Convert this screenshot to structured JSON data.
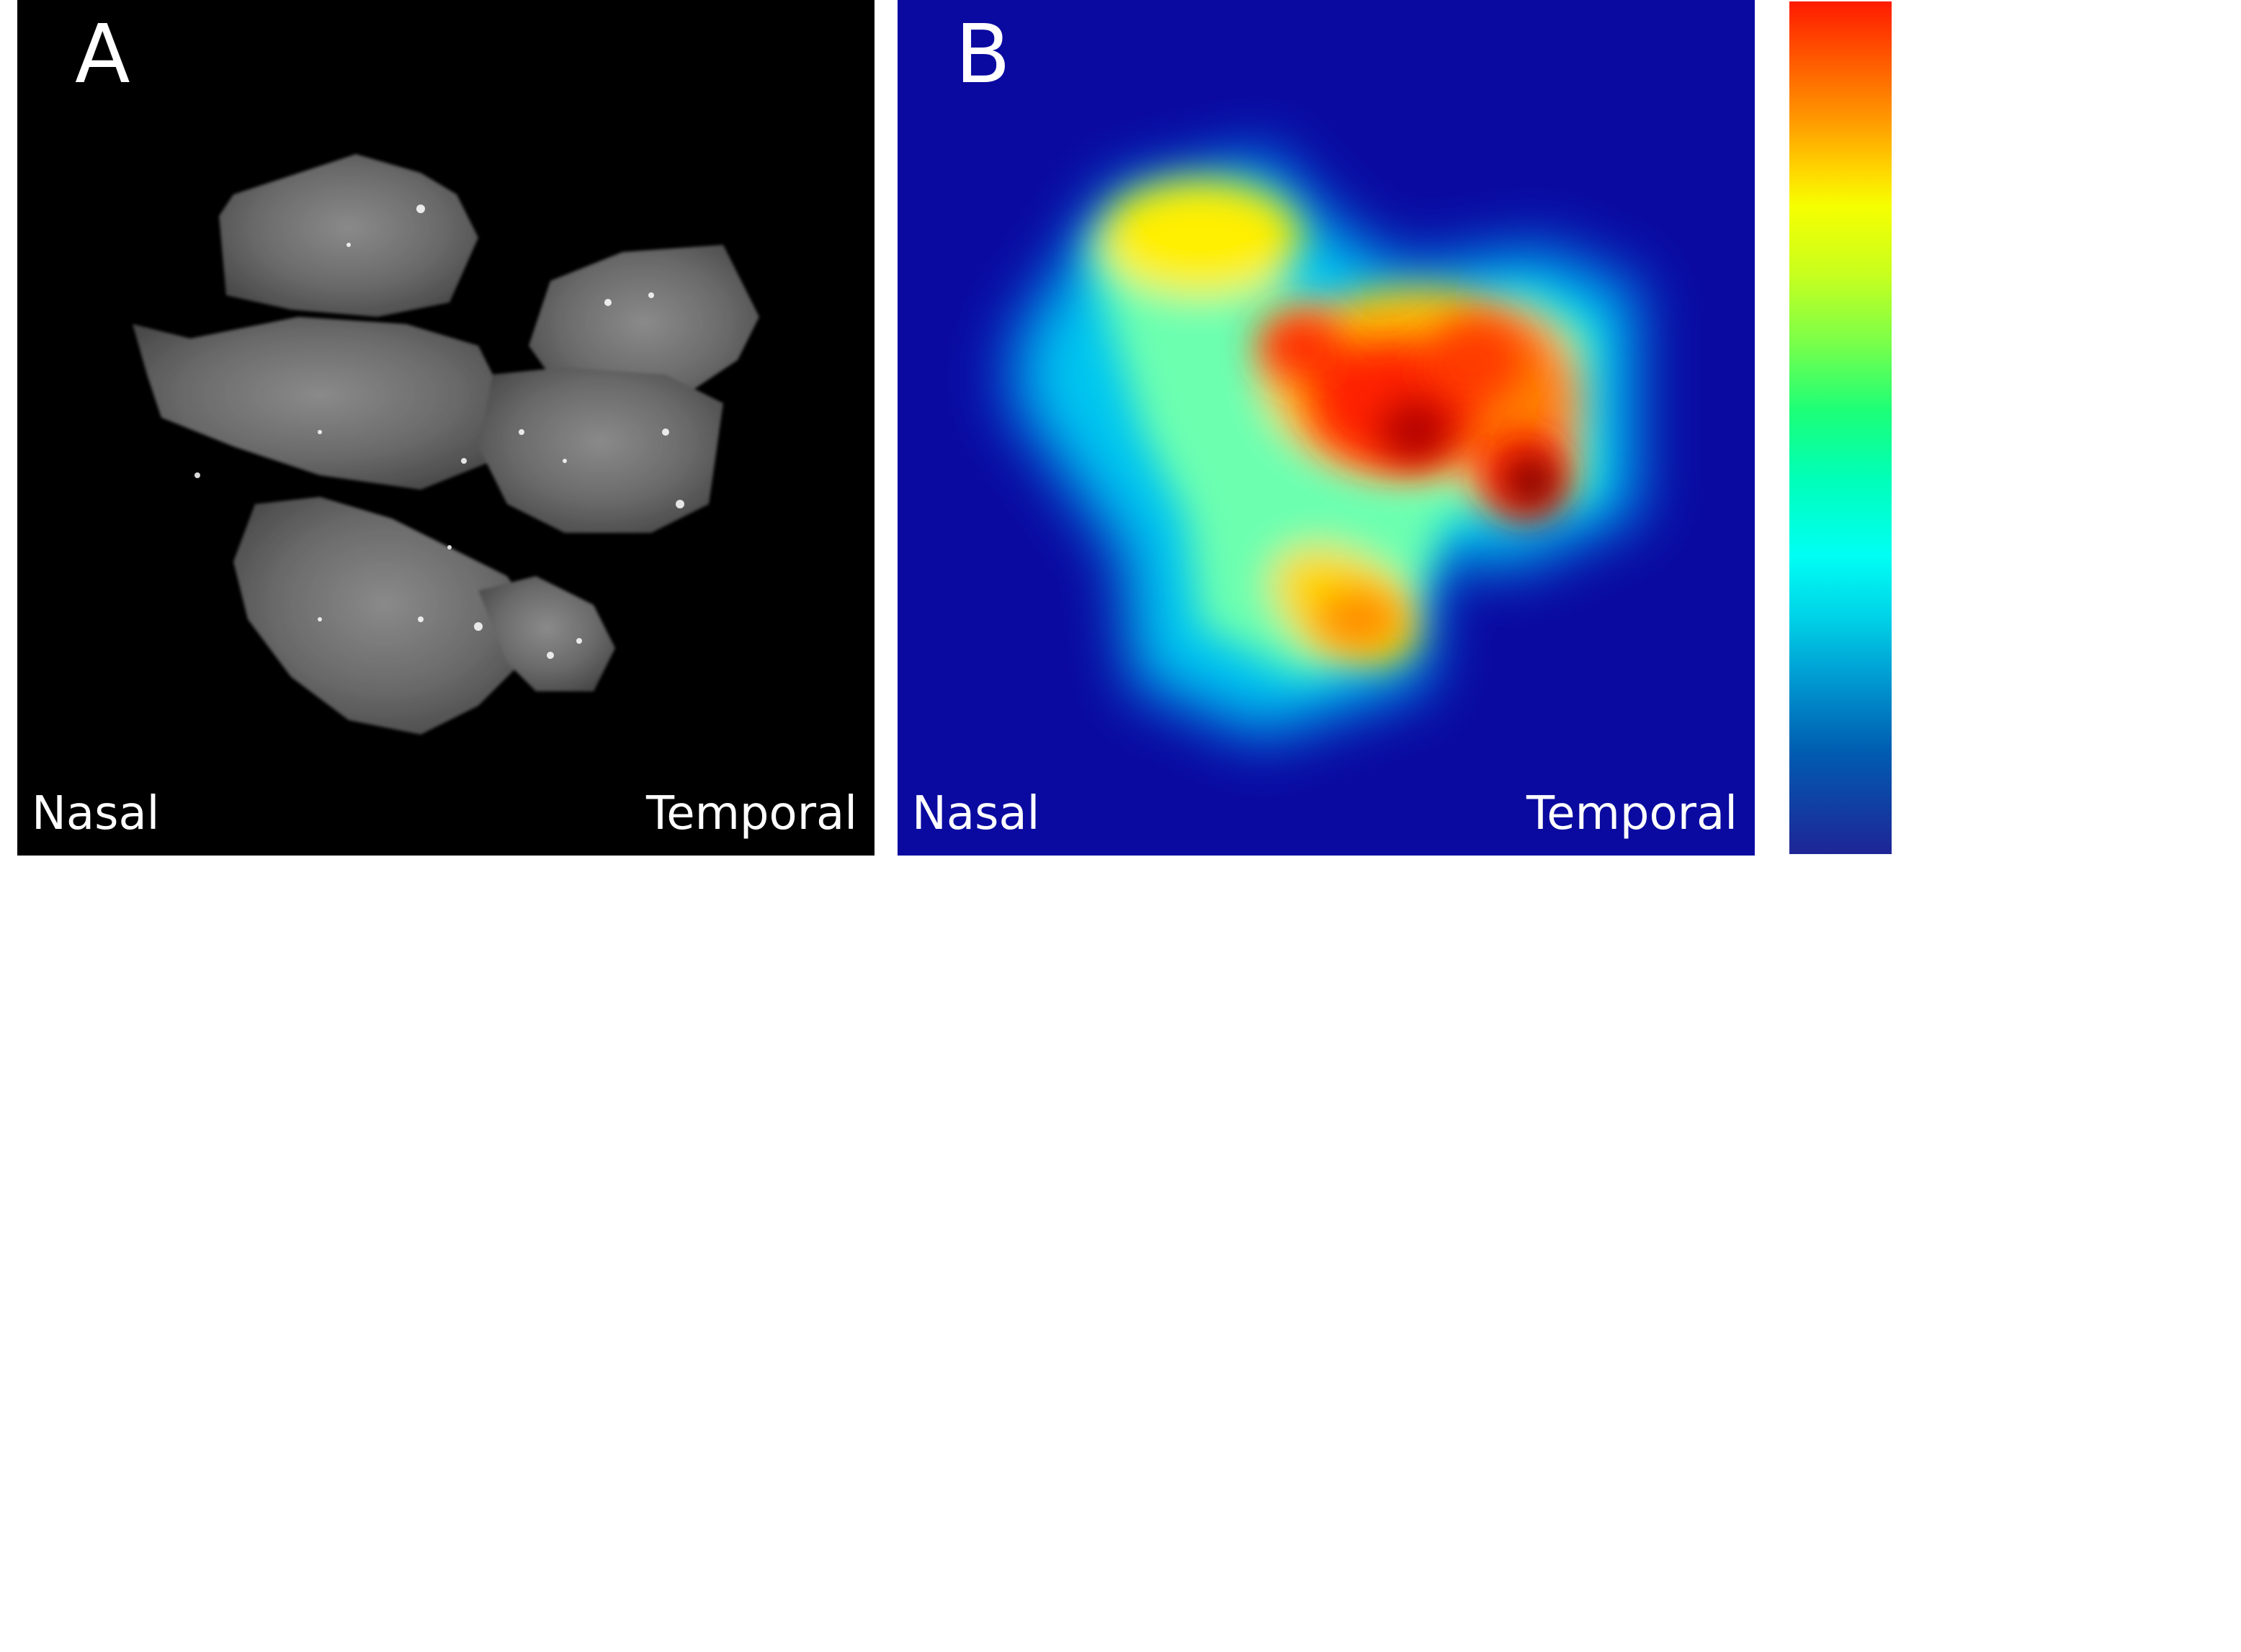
{
  "panel_a": {
    "letter": "A",
    "left_label": "Nasal",
    "right_label": "Temporal",
    "background_color": "#000000",
    "content": "grayscale-retina-flatmount"
  },
  "panel_b": {
    "letter": "B",
    "left_label": "Nasal",
    "right_label": "Temporal",
    "background_color": "#0a0aa0",
    "content": "jet-colormap-density-heatmap"
  },
  "colorbar": {
    "colormap": "jet",
    "top_color": "#ff1b00",
    "bottom_color": "#1f2596"
  }
}
